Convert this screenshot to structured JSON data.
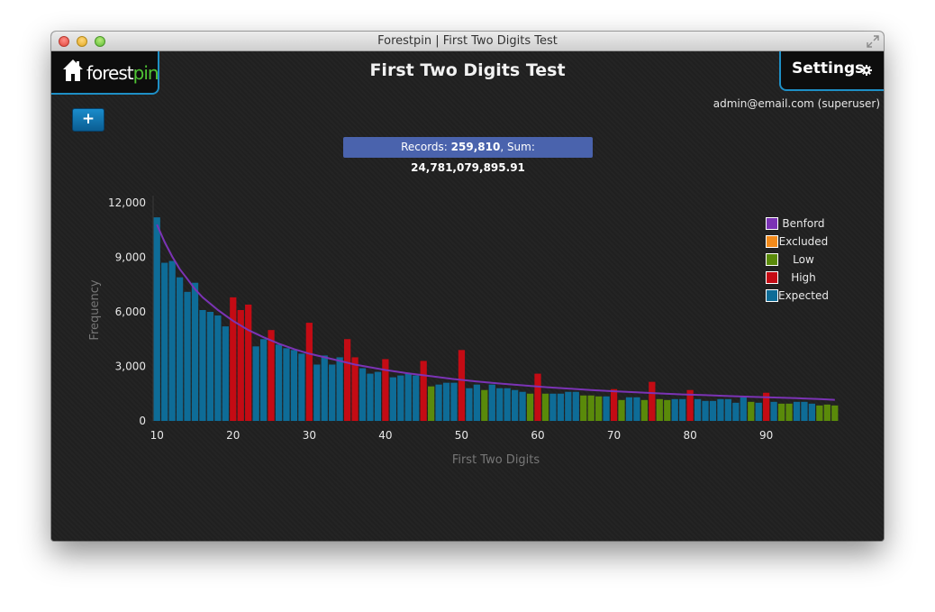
{
  "window": {
    "title": "Forestpin | First Two Digits Test"
  },
  "header": {
    "logo_text_1": "forest",
    "logo_text_2": "pin",
    "page_title": "First Two Digits Test",
    "settings_label": "Settings",
    "user_label": "admin@email.com (superuser)",
    "add_button_label": "+"
  },
  "summary": {
    "records_label": "Records: ",
    "records_value": "259,810",
    "sum_label": ", Sum: ",
    "sum_value": "24,781,079,895.91"
  },
  "colors": {
    "benford": "#7b33b5",
    "excluded": "#f28a1b",
    "low": "#5a8a0a",
    "high": "#c40b14",
    "expected": "#0e6c97"
  },
  "chart_data": {
    "type": "bar",
    "xlabel": "First Two Digits",
    "ylabel": "Frequency",
    "ylim": [
      0,
      12000
    ],
    "yticks": [
      "0",
      "3,000",
      "6,000",
      "9,000",
      "12,000"
    ],
    "xticks": [
      "10",
      "20",
      "30",
      "40",
      "50",
      "60",
      "70",
      "80",
      "90"
    ],
    "legend": [
      {
        "label": "Benford",
        "key": "benford"
      },
      {
        "label": "Excluded",
        "key": "excluded"
      },
      {
        "label": "Low",
        "key": "low"
      },
      {
        "label": "High",
        "key": "high"
      },
      {
        "label": "Expected",
        "key": "expected"
      }
    ],
    "legend_position": "top-right",
    "categories": [
      10,
      11,
      12,
      13,
      14,
      15,
      16,
      17,
      18,
      19,
      20,
      21,
      22,
      23,
      24,
      25,
      26,
      27,
      28,
      29,
      30,
      31,
      32,
      33,
      34,
      35,
      36,
      37,
      38,
      39,
      40,
      41,
      42,
      43,
      44,
      45,
      46,
      47,
      48,
      49,
      50,
      51,
      52,
      53,
      54,
      55,
      56,
      57,
      58,
      59,
      60,
      61,
      62,
      63,
      64,
      65,
      66,
      67,
      68,
      69,
      70,
      71,
      72,
      73,
      74,
      75,
      76,
      77,
      78,
      79,
      80,
      81,
      82,
      83,
      84,
      85,
      86,
      87,
      88,
      89,
      90,
      91,
      92,
      93,
      94,
      95,
      96,
      97,
      98,
      99
    ],
    "values": [
      11200,
      8700,
      8800,
      7900,
      7100,
      7600,
      6100,
      6000,
      5800,
      5200,
      6800,
      6100,
      6400,
      4100,
      4500,
      5000,
      4200,
      4000,
      3900,
      3700,
      5400,
      3100,
      3600,
      3100,
      3500,
      4500,
      3500,
      2900,
      2600,
      2700,
      3400,
      2400,
      2500,
      2600,
      2500,
      3300,
      1900,
      2000,
      2100,
      2100,
      3900,
      1800,
      2000,
      1700,
      2000,
      1800,
      1800,
      1700,
      1600,
      1500,
      2600,
      1500,
      1500,
      1500,
      1600,
      1600,
      1400,
      1400,
      1350,
      1350,
      1750,
      1150,
      1300,
      1300,
      1150,
      2150,
      1200,
      1150,
      1200,
      1200,
      1700,
      1200,
      1100,
      1100,
      1200,
      1200,
      1000,
      1300,
      1050,
      1000,
      1550,
      1050,
      950,
      950,
      1050,
      1050,
      950,
      850,
      900,
      850
    ],
    "status": [
      "expected",
      "expected",
      "expected",
      "expected",
      "expected",
      "expected",
      "expected",
      "expected",
      "expected",
      "expected",
      "high",
      "high",
      "high",
      "expected",
      "expected",
      "high",
      "expected",
      "expected",
      "expected",
      "expected",
      "high",
      "expected",
      "expected",
      "expected",
      "expected",
      "high",
      "high",
      "expected",
      "expected",
      "expected",
      "high",
      "expected",
      "expected",
      "expected",
      "expected",
      "high",
      "low",
      "expected",
      "expected",
      "expected",
      "high",
      "expected",
      "expected",
      "low",
      "expected",
      "expected",
      "expected",
      "expected",
      "expected",
      "low",
      "high",
      "low",
      "expected",
      "expected",
      "expected",
      "expected",
      "low",
      "low",
      "low",
      "expected",
      "high",
      "low",
      "expected",
      "expected",
      "low",
      "high",
      "low",
      "low",
      "expected",
      "expected",
      "high",
      "expected",
      "expected",
      "expected",
      "expected",
      "expected",
      "expected",
      "expected",
      "low",
      "expected",
      "high",
      "expected",
      "low",
      "low",
      "expected",
      "expected",
      "expected",
      "low",
      "low",
      "low"
    ],
    "benford_series": {
      "name": "Benford",
      "x": [
        10,
        11,
        12,
        13,
        14,
        15,
        16,
        17,
        18,
        19,
        20,
        22,
        24,
        26,
        28,
        30,
        32,
        34,
        36,
        38,
        40,
        43,
        46,
        49,
        52,
        55,
        58,
        61,
        64,
        67,
        70,
        73,
        76,
        79,
        82,
        85,
        88,
        91,
        94,
        97,
        99
      ],
      "values": [
        10800,
        9850,
        9050,
        8350,
        7800,
        7250,
        6800,
        6450,
        6100,
        5800,
        5500,
        5000,
        4600,
        4250,
        3950,
        3700,
        3500,
        3300,
        3100,
        2950,
        2800,
        2620,
        2460,
        2300,
        2170,
        2060,
        1960,
        1860,
        1780,
        1700,
        1630,
        1570,
        1510,
        1460,
        1420,
        1370,
        1330,
        1290,
        1250,
        1200,
        1160
      ]
    }
  }
}
